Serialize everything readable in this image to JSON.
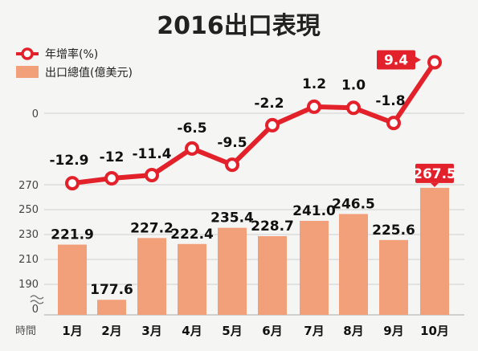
{
  "title": "2016出口表現",
  "legend": {
    "line_label": "年增率(%)",
    "bar_label": "出口總值(億美元)"
  },
  "x_axis_label": "時間",
  "colors": {
    "line": "#e3212b",
    "bar": "#f2a07a",
    "highlight": "#e3212b",
    "background": "#f5f5f4"
  },
  "chart_data": [
    {
      "type": "line",
      "name": "年增率(%)",
      "categories": [
        "1月",
        "2月",
        "3月",
        "4月",
        "5月",
        "6月",
        "7月",
        "8月",
        "9月",
        "10月"
      ],
      "values": [
        -12.9,
        -12,
        -11.4,
        -6.5,
        -9.5,
        -2.2,
        1.2,
        1.0,
        -1.8,
        9.4
      ],
      "labels": [
        "-12.9",
        "-12",
        "-11.4",
        "-6.5",
        "-9.5",
        "-2.2",
        "1.2",
        "1.0",
        "-1.8",
        "9.4"
      ],
      "y_ticks": [
        "0"
      ],
      "highlight_index": 9
    },
    {
      "type": "bar",
      "name": "出口總值(億美元)",
      "categories": [
        "1月",
        "2月",
        "3月",
        "4月",
        "5月",
        "6月",
        "7月",
        "8月",
        "9月",
        "10月"
      ],
      "values": [
        221.9,
        177.6,
        227.2,
        222.4,
        235.4,
        228.7,
        241.0,
        246.5,
        225.6,
        267.5
      ],
      "labels": [
        "221.9",
        "177.6",
        "227.2",
        "222.4",
        "235.4",
        "228.7",
        "241.0",
        "246.5",
        "225.6",
        "267.5"
      ],
      "y_ticks": [
        "270",
        "250",
        "230",
        "210",
        "190",
        "0"
      ],
      "axis_break": true,
      "highlight_index": 9
    }
  ]
}
